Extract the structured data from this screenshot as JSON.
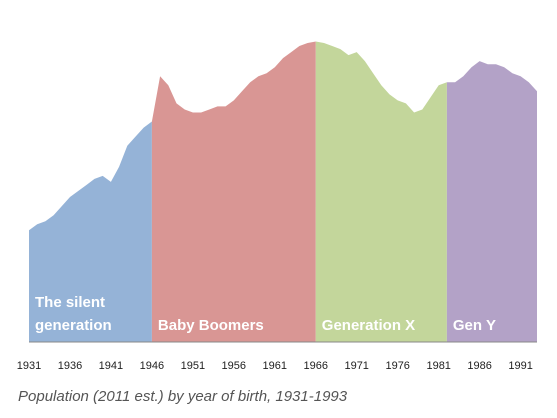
{
  "caption": "Population (2011 est.) by year of birth, 1931-1993",
  "chart_data": {
    "type": "area",
    "title": "",
    "xlabel": "",
    "ylabel": "",
    "xlim": [
      1931,
      1993
    ],
    "ylim": [
      0,
      100
    ],
    "y_axis_shown": false,
    "grid": false,
    "x_ticks": [
      1931,
      1936,
      1941,
      1946,
      1951,
      1956,
      1961,
      1966,
      1971,
      1976,
      1981,
      1986,
      1991
    ],
    "x": [
      1931,
      1932,
      1933,
      1934,
      1935,
      1936,
      1937,
      1938,
      1939,
      1940,
      1941,
      1942,
      1943,
      1944,
      1945,
      1946,
      1947,
      1948,
      1949,
      1950,
      1951,
      1952,
      1953,
      1954,
      1955,
      1956,
      1957,
      1958,
      1959,
      1960,
      1961,
      1962,
      1963,
      1964,
      1965,
      1966,
      1967,
      1968,
      1969,
      1970,
      1971,
      1972,
      1973,
      1974,
      1975,
      1976,
      1977,
      1978,
      1979,
      1980,
      1981,
      1982,
      1983,
      1984,
      1985,
      1986,
      1987,
      1988,
      1989,
      1990,
      1991,
      1992,
      1993
    ],
    "y": [
      37,
      39,
      40,
      42,
      45,
      48,
      50,
      52,
      54,
      55,
      53,
      58,
      65,
      68,
      71,
      73,
      88,
      85,
      79,
      77,
      76,
      76,
      77,
      78,
      78,
      80,
      83,
      86,
      88,
      89,
      91,
      94,
      96,
      98,
      99,
      99.5,
      99,
      98,
      97,
      95,
      96,
      93,
      89,
      85,
      82,
      80,
      79,
      76,
      77,
      81,
      85,
      86,
      86,
      88,
      91,
      93,
      92,
      92,
      91,
      89,
      88,
      86,
      83
    ],
    "series": [
      {
        "name": "The silent generation",
        "start": 1931,
        "end": 1946,
        "color": "#95b3d7"
      },
      {
        "name": "Baby Boomers",
        "start": 1946,
        "end": 1966,
        "color": "#d99694"
      },
      {
        "name": "Generation X",
        "start": 1966,
        "end": 1982,
        "color": "#c3d69b"
      },
      {
        "name": "Gen Y",
        "start": 1982,
        "end": 1993,
        "color": "#b3a2c7"
      }
    ]
  }
}
